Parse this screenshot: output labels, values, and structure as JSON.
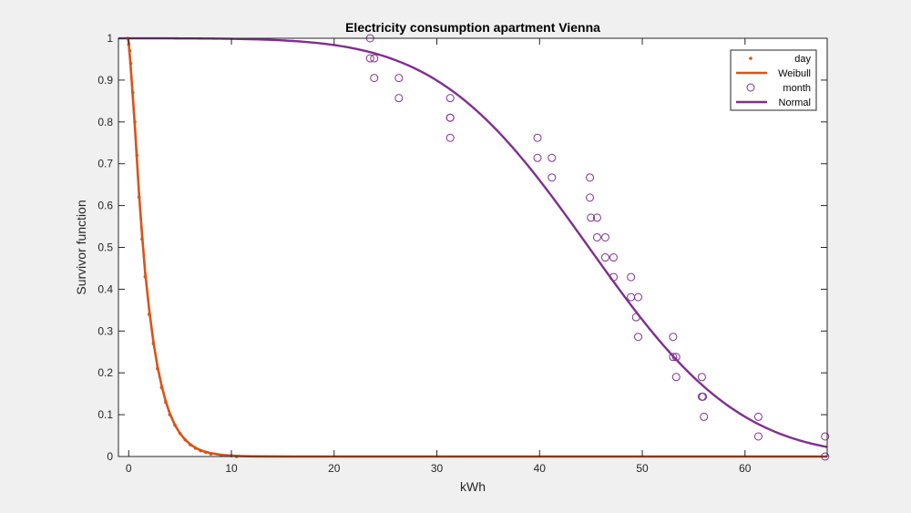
{
  "chart_data": {
    "type": "scatter",
    "title": "Electricity consumption apartment Vienna",
    "xlabel": "kWh",
    "ylabel": "Survivor function",
    "xlim": [
      -1,
      68
    ],
    "ylim": [
      0,
      1
    ],
    "xticks": [
      0,
      10,
      20,
      30,
      40,
      50,
      60
    ],
    "yticks": [
      0,
      0.1,
      0.2,
      0.3,
      0.4,
      0.5,
      0.6,
      0.7,
      0.8,
      0.9,
      1
    ],
    "ytick_labels": [
      "0",
      "0.1",
      "0.2",
      "0.3",
      "0.4",
      "0.5",
      "0.6",
      "0.7",
      "0.8",
      "0.9",
      "1"
    ],
    "grid": false,
    "legend_position": "top-right",
    "colors": {
      "orange": "#D95319",
      "purple": "#7E2F8E"
    },
    "series": [
      {
        "name": "day",
        "kind": "points",
        "x": [
          -0.1,
          0.0,
          0.1,
          0.2,
          0.4,
          0.6,
          0.8,
          1.0,
          1.3,
          1.6,
          2.0,
          2.4,
          2.8,
          3.2,
          3.6,
          4.0,
          4.5,
          5.0,
          5.5,
          6.0,
          6.5,
          7.0,
          7.5,
          8.0,
          9.0,
          10.0,
          10.5
        ],
        "y": [
          1.0,
          0.985,
          0.97,
          0.94,
          0.87,
          0.8,
          0.72,
          0.62,
          0.52,
          0.43,
          0.34,
          0.27,
          0.21,
          0.165,
          0.13,
          0.1,
          0.075,
          0.055,
          0.04,
          0.028,
          0.02,
          0.014,
          0.01,
          0.006,
          0.003,
          0.002,
          0.0
        ]
      },
      {
        "name": "Weibull",
        "kind": "line",
        "x": [
          -0.1,
          0.0,
          0.2,
          0.4,
          0.6,
          0.8,
          1.0,
          1.3,
          1.6,
          2.0,
          2.4,
          2.8,
          3.2,
          3.6,
          4.0,
          4.5,
          5.0,
          5.5,
          6.0,
          6.5,
          7.0,
          7.5,
          8.0,
          9.0,
          10.0,
          11.0,
          12.0,
          14.0,
          16.0,
          20.0,
          30.0,
          40.0,
          50.0,
          60.0,
          68.0
        ],
        "y": [
          1.0,
          0.99,
          0.93,
          0.86,
          0.79,
          0.71,
          0.63,
          0.53,
          0.44,
          0.35,
          0.275,
          0.215,
          0.17,
          0.132,
          0.103,
          0.075,
          0.055,
          0.04,
          0.029,
          0.021,
          0.015,
          0.011,
          0.008,
          0.004,
          0.002,
          0.001,
          0.0005,
          0.0001,
          0.0,
          0.0,
          0.0,
          0.0,
          0.0,
          0.0,
          0.0
        ]
      },
      {
        "name": "month",
        "kind": "circles",
        "x": [
          23.5,
          23.5,
          23.9,
          23.9,
          26.3,
          26.3,
          31.3,
          31.3,
          31.3,
          31.3,
          39.8,
          39.8,
          41.2,
          41.2,
          44.9,
          44.9,
          45.0,
          45.6,
          45.6,
          46.4,
          46.4,
          47.2,
          47.2,
          48.9,
          48.9,
          49.6,
          49.4,
          49.6,
          53.0,
          53.0,
          53.3,
          53.3,
          55.8,
          55.8,
          55.9,
          56.0,
          61.3,
          61.3,
          67.8,
          67.8
        ],
        "y": [
          1.0,
          0.952,
          0.952,
          0.905,
          0.905,
          0.857,
          0.857,
          0.81,
          0.81,
          0.762,
          0.762,
          0.714,
          0.714,
          0.667,
          0.667,
          0.619,
          0.571,
          0.571,
          0.524,
          0.524,
          0.476,
          0.476,
          0.429,
          0.429,
          0.381,
          0.381,
          0.333,
          0.286,
          0.286,
          0.238,
          0.238,
          0.19,
          0.19,
          0.143,
          0.143,
          0.095,
          0.095,
          0.048,
          0.048,
          0.0
        ]
      },
      {
        "name": "Normal",
        "kind": "line",
        "mean": 44.8,
        "sd": 11.6,
        "x": [
          -1,
          0,
          5,
          10,
          12,
          15,
          18,
          20,
          22,
          24,
          26,
          28,
          30,
          32,
          34,
          36,
          38,
          40,
          42,
          44,
          46,
          48,
          50,
          52,
          54,
          56,
          58,
          60,
          62,
          64,
          66,
          68
        ],
        "y": [
          1.0,
          1.0,
          1.0,
          0.9987,
          0.9976,
          0.9949,
          0.9893,
          0.9838,
          0.9753,
          0.9639,
          0.9484,
          0.9265,
          0.8993,
          0.8643,
          0.8212,
          0.7764,
          0.719,
          0.6591,
          0.5948,
          0.5279,
          0.4602,
          0.3936,
          0.3264,
          0.2676,
          0.2119,
          0.166,
          0.1271,
          0.0951,
          0.069,
          0.0495,
          0.0341,
          0.0226
        ]
      }
    ]
  }
}
